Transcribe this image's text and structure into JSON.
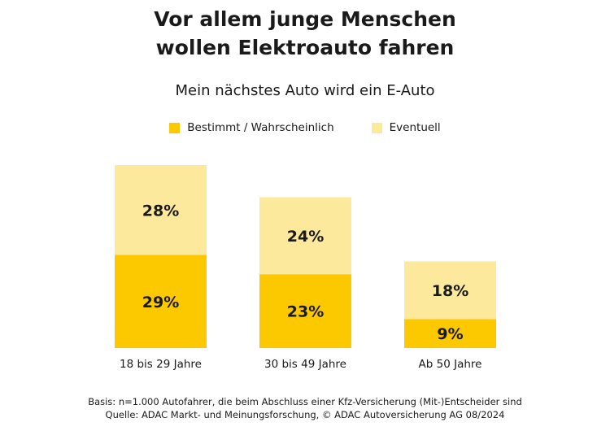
{
  "chart_data": {
    "type": "bar",
    "stacked": true,
    "title": "Vor allem junge Menschen wollen Elektroauto fahren",
    "title_lines": [
      "Vor allem junge Menschen",
      "wollen Elektroauto fahren"
    ],
    "subtitle": "Mein nächstes Auto wird ein E-Auto",
    "categories": [
      "18 bis 29 Jahre",
      "30 bis 49 Jahre",
      "Ab 50 Jahre"
    ],
    "series": [
      {
        "name": "Bestimmt / Wahrscheinlich",
        "values": [
          29,
          23,
          9
        ],
        "labels": [
          "29%",
          "23%",
          "9%"
        ],
        "color": "#fcc800"
      },
      {
        "name": "Eventuell",
        "values": [
          28,
          24,
          18
        ],
        "labels": [
          "28%",
          "24%",
          "18%"
        ],
        "color": "#fde99c"
      }
    ],
    "ylim": [
      0,
      57
    ],
    "legend": "top-center",
    "grid": false
  },
  "footer": {
    "basis": "Basis: n=1.000 Autofahrer, die beim Abschluss einer Kfz-Versicherung (Mit-)Entscheider sind",
    "source": "Quelle: ADAC Markt- und Meinungsforschung, © ADAC Autoversicherung AG 08/2024"
  }
}
